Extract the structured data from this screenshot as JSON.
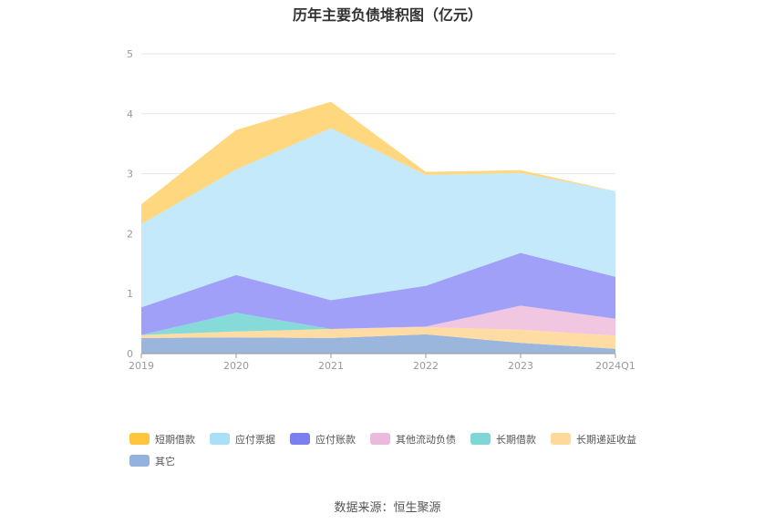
{
  "chart_data": {
    "type": "area",
    "title": "历年主要负债堆积图（亿元）",
    "categories": [
      "2019",
      "2020",
      "2021",
      "2022",
      "2023",
      "2024Q1"
    ],
    "ylim": [
      0,
      5
    ],
    "yticks": [
      "0",
      "1",
      "2",
      "3",
      "4",
      "5"
    ],
    "stacked": true,
    "grid": true,
    "legend_position": "bottom",
    "series": [
      {
        "name": "其它",
        "color": "#9ab6dc",
        "values": [
          0.26,
          0.27,
          0.26,
          0.32,
          0.18,
          0.08
        ]
      },
      {
        "name": "长期递延收益",
        "color": "#ffdca3",
        "values": [
          0.05,
          0.1,
          0.15,
          0.12,
          0.22,
          0.22
        ]
      },
      {
        "name": "长期借款",
        "color": "#86dbd8",
        "values": [
          0.0,
          0.31,
          0.0,
          0.0,
          0.0,
          0.0
        ]
      },
      {
        "name": "其他流动负债",
        "color": "#f0c6e0",
        "values": [
          0.0,
          0.0,
          0.0,
          0.01,
          0.4,
          0.28
        ]
      },
      {
        "name": "应付账款",
        "color": "#a0a0f8",
        "values": [
          0.46,
          0.63,
          0.48,
          0.68,
          0.88,
          0.7
        ]
      },
      {
        "name": "应付票据",
        "color": "#c4e9fb",
        "values": [
          1.39,
          1.76,
          2.87,
          1.85,
          1.33,
          1.43
        ]
      },
      {
        "name": "短期借款",
        "color": "#ffd77e",
        "values": [
          0.33,
          0.66,
          0.44,
          0.05,
          0.05,
          0.0
        ]
      }
    ],
    "legend_order": [
      {
        "name": "短期借款",
        "color": "#ffc63d"
      },
      {
        "name": "应付票据",
        "color": "#a9e0f8"
      },
      {
        "name": "应付账款",
        "color": "#7b7ff0"
      },
      {
        "name": "其他流动负债",
        "color": "#eab9dc"
      },
      {
        "name": "长期借款",
        "color": "#7fd6d6"
      },
      {
        "name": "长期递延收益",
        "color": "#ffd99a"
      },
      {
        "name": "其它",
        "color": "#93b3de"
      }
    ]
  },
  "source_text": "数据来源：恒生聚源"
}
